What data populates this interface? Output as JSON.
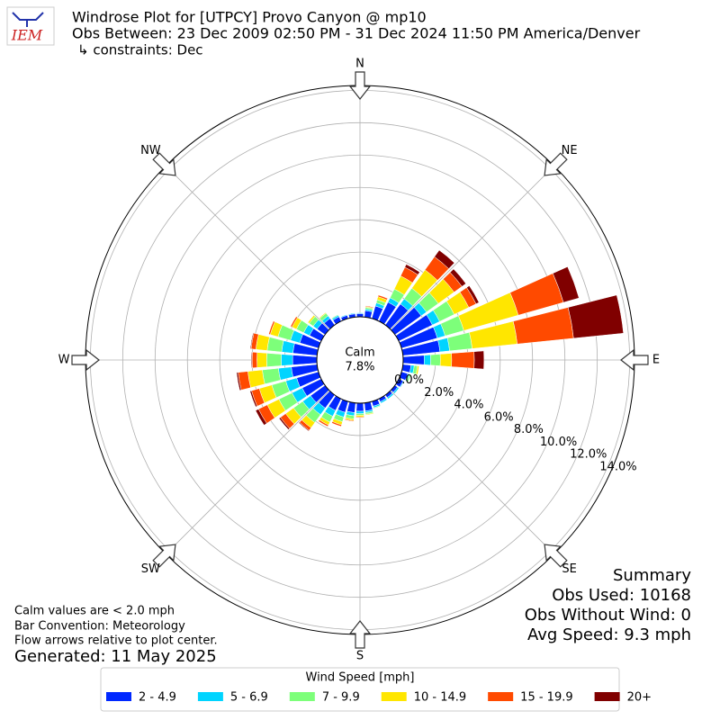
{
  "chart_data": {
    "type": "windrose",
    "logo": "IEM",
    "title": "Windrose Plot for [UTPCY] Provo Canyon @ mp10",
    "subtitle": "Obs Between: 23 Dec 2009 02:50 PM - 31 Dec 2024 11:50 PM America/Denver",
    "constraints": "↳ constraints: Dec",
    "angle_labels": [
      "N",
      "NE",
      "E",
      "SE",
      "S",
      "SW",
      "W",
      "NW"
    ],
    "calm_label": "Calm",
    "calm_value": "7.8%",
    "ylim": [
      0,
      14.3
    ],
    "yticks": [
      {
        "value": 0,
        "label": "0.0%"
      },
      {
        "value": 2,
        "label": "2.0%"
      },
      {
        "value": 4,
        "label": "4.0%"
      },
      {
        "value": 6,
        "label": "6.0%"
      },
      {
        "value": 8,
        "label": "8.0%"
      },
      {
        "value": 10,
        "label": "10.0%"
      },
      {
        "value": 12,
        "label": "12.0%"
      },
      {
        "value": 14,
        "label": "14.0%"
      }
    ],
    "grid": true,
    "legend_title": "Wind Speed [mph]",
    "series": [
      {
        "name": "2 - 4.9",
        "color": "#0028ff",
        "values": [
          0.2,
          0.4,
          0.8,
          1.3,
          1.6,
          2.0,
          2.3,
          2.3,
          2.3,
          1.3,
          0.5,
          0.4,
          0.3,
          0.2,
          0.2,
          0.2,
          0.3,
          0.5,
          0.5,
          0.6,
          0.7,
          0.8,
          1.0,
          1.1,
          1.3,
          1.4,
          1.6,
          1.5,
          1.5,
          1.2,
          0.8,
          0.6,
          0.5,
          0.3,
          0.2,
          0.2
        ]
      },
      {
        "name": "5 - 6.9",
        "color": "#00d4ff",
        "values": [
          0.05,
          0.1,
          0.2,
          0.3,
          0.4,
          0.4,
          0.5,
          0.5,
          0.6,
          0.4,
          0.2,
          0.1,
          0.05,
          0.1,
          0.1,
          0.1,
          0.1,
          0.1,
          0.15,
          0.2,
          0.3,
          0.4,
          0.5,
          0.6,
          0.7,
          0.7,
          0.8,
          0.7,
          0.7,
          0.6,
          0.4,
          0.3,
          0.2,
          0.1,
          0.05,
          0.05
        ]
      },
      {
        "name": "7 - 9.9",
        "color": "#7dff7a",
        "values": [
          0,
          0.1,
          0.2,
          0.6,
          0.8,
          0.9,
          1.0,
          1.2,
          1.4,
          0.6,
          0.2,
          0.1,
          0,
          0,
          0,
          0,
          0.05,
          0.1,
          0.1,
          0.2,
          0.3,
          0.4,
          0.6,
          0.7,
          0.9,
          0.9,
          1.0,
          0.9,
          0.9,
          0.8,
          0.5,
          0.3,
          0.2,
          0.05,
          0,
          0
        ]
      },
      {
        "name": "10 - 14.9",
        "color": "#ffe600",
        "values": [
          0,
          0.05,
          0.2,
          0.9,
          1.4,
          1.2,
          1.0,
          3.5,
          2.8,
          0.7,
          0.1,
          0,
          0,
          0,
          0,
          0,
          0,
          0.05,
          0.1,
          0.1,
          0.2,
          0.2,
          0.4,
          0.6,
          0.8,
          0.8,
          0.9,
          0.6,
          0.7,
          0.5,
          0.3,
          0.1,
          0.05,
          0,
          0,
          0
        ]
      },
      {
        "name": "15 - 19.9",
        "color": "#ff4a00",
        "values": [
          0,
          0.05,
          0.1,
          0.6,
          1.0,
          0.6,
          0.5,
          2.9,
          3.5,
          1.4,
          0,
          0,
          0,
          0,
          0,
          0,
          0,
          0,
          0.05,
          0.05,
          0.1,
          0.1,
          0.2,
          0.4,
          0.6,
          0.5,
          0.6,
          0.3,
          0.3,
          0.1,
          0.1,
          0,
          0,
          0,
          0,
          0
        ]
      },
      {
        "name": "20+",
        "color": "#800000",
        "values": [
          0,
          0,
          0,
          0.2,
          0.5,
          0.3,
          0.2,
          1.0,
          3.1,
          0.6,
          0,
          0,
          0,
          0,
          0,
          0,
          0,
          0,
          0,
          0,
          0,
          0,
          0.05,
          0.1,
          0.2,
          0.1,
          0.1,
          0.05,
          0.05,
          0,
          0,
          0,
          0,
          0,
          0,
          0
        ]
      }
    ],
    "notes": [
      "Calm values are < 2.0 mph",
      "Bar Convention: Meteorology",
      "Flow arrows relative to plot center."
    ],
    "generated": "Generated: 11 May 2025",
    "summary": [
      "Summary",
      "Obs Used: 10168",
      "Obs Without Wind: 0",
      "Avg Speed: 9.3 mph"
    ]
  }
}
